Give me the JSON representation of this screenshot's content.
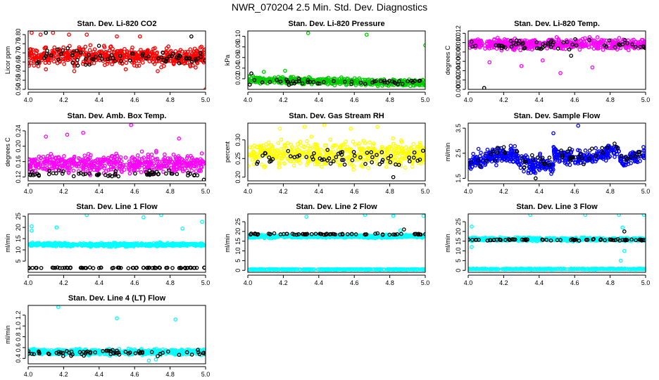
{
  "title": "NWR_070204  2.5 Min. Std. Dev. Diagnostics",
  "chart_data": [
    {
      "type": "scatter",
      "title": "Stan. Dev. Li-820 CO2",
      "ylabel": "Licor ppm",
      "xlim": [
        4.0,
        5.0
      ],
      "ylim": [
        0.5,
        0.82
      ],
      "xticks": [
        "4.0",
        "4.2",
        "4.4",
        "4.6",
        "4.8",
        "5.0"
      ],
      "yticks": [
        "0.50",
        "0.55",
        "0.60",
        "0.65",
        "0.70",
        "0.75",
        "0.80"
      ],
      "series": [
        {
          "name": "red",
          "color": "#ff0000",
          "n": 560,
          "base": 0.68,
          "spread": 0.045,
          "outliers": [
            [
              4.02,
              0.81
            ],
            [
              4.07,
              0.8
            ],
            [
              4.14,
              0.81
            ],
            [
              4.23,
              0.8
            ],
            [
              4.33,
              0.8
            ],
            [
              4.5,
              0.79
            ],
            [
              4.63,
              0.79
            ],
            [
              5.0,
              0.5
            ],
            [
              4.1,
              0.61
            ],
            [
              4.26,
              0.6
            ],
            [
              4.55,
              0.61
            ],
            [
              4.73,
              0.6
            ]
          ]
        },
        {
          "name": "black",
          "color": "#000000",
          "n": 70,
          "base": 0.68,
          "spread": 0.045,
          "outliers": [
            [
              4.1,
              0.81
            ],
            [
              4.92,
              0.79
            ]
          ]
        }
      ]
    },
    {
      "type": "scatter",
      "title": "Stan. Dev. Li-820 Pressure",
      "ylabel": "kPa",
      "xlim": [
        4.0,
        5.0
      ],
      "ylim": [
        0.0,
        0.11
      ],
      "xticks": [
        "4.0",
        "4.2",
        "4.4",
        "4.6",
        "4.8",
        "5.0"
      ],
      "yticks": [
        "0.02",
        "0.04",
        "0.06",
        "0.08",
        "0.10"
      ],
      "series": [
        {
          "name": "green",
          "color": "#00cc00",
          "n": 520,
          "base": 0.018,
          "spread": 0.006,
          "trend": -0.006,
          "outliers": [
            [
              4.34,
              0.106
            ],
            [
              4.67,
              0.103
            ],
            [
              5.0,
              0.083
            ],
            [
              4.09,
              0.033
            ],
            [
              4.21,
              0.035
            ]
          ]
        },
        {
          "name": "black",
          "color": "#000000",
          "n": 50,
          "base": 0.014,
          "spread": 0.004,
          "outliers": [
            [
              4.02,
              0.03
            ]
          ]
        }
      ]
    },
    {
      "type": "scatter",
      "title": "Stan. Dev. Li-820 Temp.",
      "ylabel": "degrees C",
      "xlim": [
        4.0,
        5.0
      ],
      "ylim": [
        0.0,
        0.0125
      ],
      "xticks": [
        "4.0",
        "4.2",
        "4.4",
        "4.6",
        "4.8",
        "5.0"
      ],
      "yticks": [
        "0.000",
        "0.002",
        "0.004",
        "0.006",
        "0.008",
        "0.010",
        "0.012"
      ],
      "series": [
        {
          "name": "magenta",
          "color": "#ff00ff",
          "n": 520,
          "base": 0.0097,
          "spread": 0.001,
          "outliers": [
            [
              4.12,
              0.0058
            ],
            [
              4.3,
              0.005
            ],
            [
              4.52,
              0.0035
            ],
            [
              4.7,
              0.0047
            ],
            [
              4.42,
              0.0062
            ]
          ]
        },
        {
          "name": "black",
          "color": "#000000",
          "n": 60,
          "base": 0.0095,
          "spread": 0.0012,
          "outliers": [
            [
              4.09,
              0.0003
            ],
            [
              4.58,
              0.0072
            ]
          ]
        }
      ]
    },
    {
      "type": "scatter",
      "title": "Stan. Dev. Amb. Box Temp.",
      "ylabel": "degrees C",
      "xlim": [
        4.0,
        5.0
      ],
      "ylim": [
        0.11,
        0.26
      ],
      "xticks": [
        "4.0",
        "4.2",
        "4.4",
        "4.6",
        "4.8",
        "5.0"
      ],
      "yticks": [
        "0.12",
        "0.16",
        "0.20",
        "0.24"
      ],
      "series": [
        {
          "name": "magenta",
          "color": "#ff00ff",
          "n": 520,
          "base": 0.155,
          "spread": 0.022,
          "outliers": [
            [
              4.58,
              0.255
            ],
            [
              4.31,
              0.235
            ],
            [
              4.1,
              0.225
            ],
            [
              4.85,
              0.22
            ],
            [
              4.22,
              0.23
            ]
          ]
        },
        {
          "name": "black",
          "color": "#000000",
          "n": 60,
          "base": 0.128,
          "spread": 0.008,
          "outliers": [
            [
              4.99,
              0.113
            ]
          ]
        }
      ]
    },
    {
      "type": "scatter",
      "title": "Stan. Dev. Gas Stream RH",
      "ylabel": "percent",
      "xlim": [
        4.0,
        5.0
      ],
      "ylim": [
        0.19,
        0.345
      ],
      "xticks": [
        "4.0",
        "4.2",
        "4.4",
        "4.6",
        "4.8",
        "5.0"
      ],
      "yticks": [
        "0.20",
        "0.25",
        "0.30"
      ],
      "series": [
        {
          "name": "yellow",
          "color": "#ffff00",
          "n": 520,
          "base": 0.262,
          "spread": 0.03,
          "outliers": [
            [
              4.43,
              0.34
            ],
            [
              4.32,
              0.335
            ],
            [
              4.58,
              0.33
            ],
            [
              4.73,
              0.335
            ],
            [
              4.18,
              0.33
            ]
          ]
        },
        {
          "name": "black",
          "color": "#000000",
          "n": 60,
          "base": 0.255,
          "spread": 0.025,
          "outliers": [
            [
              4.82,
              0.2
            ]
          ]
        }
      ]
    },
    {
      "type": "scatter",
      "title": "Stan. Dev. Sample Flow",
      "ylabel": "ml/min",
      "xlim": [
        4.0,
        5.0
      ],
      "ylim": [
        1.4,
        3.7
      ],
      "xticks": [
        "4.0",
        "4.2",
        "4.4",
        "4.6",
        "4.8",
        "5.0"
      ],
      "yticks": [
        "1.5",
        "2.5",
        "3.5"
      ],
      "series": [
        {
          "name": "blue",
          "color": "#0000ff",
          "n": 560,
          "base": 2.1,
          "spread": 0.28,
          "trend": 0.0,
          "wave": true,
          "outliers": [
            [
              4.62,
              3.6
            ],
            [
              4.48,
              3.3
            ]
          ]
        },
        {
          "name": "black",
          "color": "#000000",
          "n": 60,
          "base": 2.2,
          "spread": 0.3,
          "wave": true,
          "outliers": [
            [
              4.38,
              1.5
            ]
          ]
        }
      ]
    },
    {
      "type": "scatter",
      "title": "Stan. Dev. Line 1 Flow",
      "ylabel": "ml/min",
      "xlim": [
        4.0,
        5.0
      ],
      "ylim": [
        0.0,
        26.0
      ],
      "xticks": [
        "4.0",
        "4.2",
        "4.4",
        "4.6",
        "4.8",
        "5.0"
      ],
      "yticks": [
        "5",
        "10",
        "15",
        "20",
        "25"
      ],
      "series": [
        {
          "name": "cyan",
          "color": "#00ffff",
          "n": 540,
          "base": 12.3,
          "spread": 0.7,
          "outliers": [
            [
              4.33,
              25.5
            ],
            [
              4.75,
              25.5
            ],
            [
              4.02,
              20.5
            ],
            [
              4.02,
              18.5
            ],
            [
              4.98,
              22.5
            ],
            [
              4.87,
              19.5
            ],
            [
              4.16,
              20.0
            ],
            [
              4.65,
              24.5
            ]
          ]
        },
        {
          "name": "black",
          "color": "#000000",
          "n": 70,
          "base": 2.0,
          "spread": 0.15,
          "outliers": []
        }
      ]
    },
    {
      "type": "scatter",
      "title": "Stan. Dev. Line 2 Flow",
      "ylabel": "ml/min",
      "xlim": [
        4.0,
        5.0
      ],
      "ylim": [
        -1.0,
        29.0
      ],
      "xticks": [
        "4.0",
        "4.2",
        "4.4",
        "4.6",
        "4.8",
        "5.0"
      ],
      "yticks": [
        "0",
        "5",
        "10",
        "15",
        "20",
        "25"
      ],
      "series": [
        {
          "name": "cyan",
          "color": "#00ffff",
          "n": 520,
          "base": 17.5,
          "spread": 0.7,
          "outliers": [
            [
              4.33,
              27.5
            ],
            [
              4.66,
              28.5
            ],
            [
              4.82,
              28.0
            ],
            [
              4.99,
              28.0
            ],
            [
              4.86,
              20.5
            ]
          ]
        },
        {
          "name": "cyan_low",
          "color": "#00ffff",
          "n": 320,
          "base": 0.5,
          "spread": 0.15,
          "outliers": []
        },
        {
          "name": "black",
          "color": "#000000",
          "n": 70,
          "base": 18.6,
          "spread": 0.35,
          "outliers": [
            [
              4.88,
              21.0
            ]
          ]
        }
      ]
    },
    {
      "type": "scatter",
      "title": "Stan. Dev. Line 3 Flow",
      "ylabel": "ml/min",
      "xlim": [
        4.0,
        5.0
      ],
      "ylim": [
        -1.0,
        29.0
      ],
      "xticks": [
        "4.0",
        "4.2",
        "4.4",
        "4.6",
        "4.8",
        "5.0"
      ],
      "yticks": [
        "0",
        "5",
        "10",
        "15",
        "20",
        "25"
      ],
      "series": [
        {
          "name": "cyan",
          "color": "#00ffff",
          "n": 500,
          "base": 16.0,
          "spread": 0.8,
          "outliers": [
            [
              4.02,
              22.5
            ],
            [
              4.02,
              12.0
            ],
            [
              4.35,
              28.5
            ],
            [
              4.66,
              28.5
            ],
            [
              4.85,
              28.5
            ],
            [
              4.99,
              28.5
            ],
            [
              4.87,
              22.0
            ],
            [
              4.86,
              5.0
            ],
            [
              4.88,
              10.0
            ]
          ]
        },
        {
          "name": "cyan_low",
          "color": "#00ffff",
          "n": 320,
          "base": 0.7,
          "spread": 0.2,
          "outliers": []
        },
        {
          "name": "black",
          "color": "#000000",
          "n": 70,
          "base": 15.7,
          "spread": 0.4,
          "outliers": [
            [
              4.88,
              20.0
            ]
          ]
        }
      ]
    },
    {
      "type": "scatter",
      "title": "Stan. Dev. Line 4 (LT) Flow",
      "ylabel": "ml/min",
      "xlim": [
        4.0,
        5.0
      ],
      "ylim": [
        0.3,
        1.38
      ],
      "xticks": [
        "4.0",
        "4.2",
        "4.4",
        "4.6",
        "4.8",
        "5.0"
      ],
      "yticks": [
        "0.4",
        "0.6",
        "0.8",
        "1.0",
        "1.2"
      ],
      "series": [
        {
          "name": "cyan",
          "color": "#00ffff",
          "n": 560,
          "base": 0.52,
          "spread": 0.05,
          "outliers": [
            [
              4.17,
              1.35
            ],
            [
              4.5,
              1.14
            ],
            [
              4.83,
              1.12
            ],
            [
              4.68,
              0.36
            ],
            [
              4.72,
              0.38
            ]
          ]
        },
        {
          "name": "black",
          "color": "#000000",
          "n": 70,
          "base": 0.5,
          "spread": 0.05,
          "outliers": []
        }
      ]
    }
  ]
}
